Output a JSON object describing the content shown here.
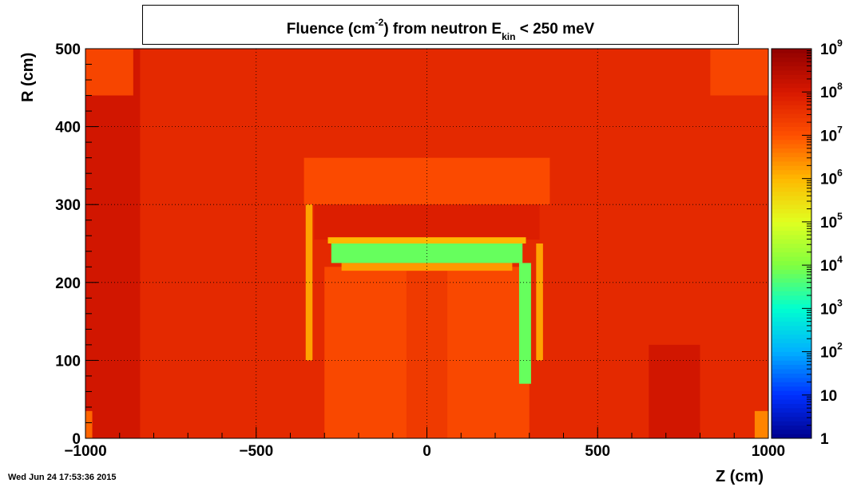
{
  "chart_data": {
    "type": "heatmap",
    "title": {
      "prefix": "Fluence (cm",
      "exponent": "-2",
      "middle": ") from   neutron  E",
      "subscript": "kin",
      "suffix": " < 250 meV"
    },
    "xlabel": "Z (cm)",
    "ylabel": "R (cm)",
    "xlim": [
      -1000,
      1000
    ],
    "ylim": [
      0,
      500
    ],
    "x_ticks": [
      {
        "value": -1000,
        "label": "−1000"
      },
      {
        "value": -500,
        "label": "−500"
      },
      {
        "value": 0,
        "label": "0"
      },
      {
        "value": 500,
        "label": "500"
      },
      {
        "value": 1000,
        "label": "1000"
      }
    ],
    "y_ticks": [
      {
        "value": 0,
        "label": "0"
      },
      {
        "value": 100,
        "label": "100"
      },
      {
        "value": 200,
        "label": "200"
      },
      {
        "value": 300,
        "label": "300"
      },
      {
        "value": 400,
        "label": "400"
      },
      {
        "value": 500,
        "label": "500"
      }
    ],
    "grid": true,
    "color_scale": "log",
    "colorbar_range": [
      1,
      1000000000
    ],
    "colorbar_ticks": [
      {
        "value": 1,
        "base": "1",
        "exp": ""
      },
      {
        "value": 10,
        "base": "10",
        "exp": ""
      },
      {
        "value": 100,
        "base": "10",
        "exp": "2"
      },
      {
        "value": 1000,
        "base": "10",
        "exp": "3"
      },
      {
        "value": 10000,
        "base": "10",
        "exp": "4"
      },
      {
        "value": 100000,
        "base": "10",
        "exp": "5"
      },
      {
        "value": 1000000,
        "base": "10",
        "exp": "6"
      },
      {
        "value": 10000000,
        "base": "10",
        "exp": "7"
      },
      {
        "value": 100000000,
        "base": "10",
        "exp": "8"
      },
      {
        "value": 1000000000,
        "base": "10",
        "exp": "9"
      }
    ],
    "colorbar_colors": [
      "#00008c",
      "#0030ff",
      "#00b0ff",
      "#00ffd0",
      "#80ff40",
      "#e0ff20",
      "#ffb800",
      "#ff5000",
      "#d81800",
      "#900000"
    ],
    "background_log_value": 7.7,
    "regions": [
      {
        "name": "left-dark-band",
        "z": [
          -1000,
          -840
        ],
        "r": [
          0,
          500
        ],
        "log_value": 8.1
      },
      {
        "name": "left-corner-top",
        "z": [
          -1000,
          -860
        ],
        "r": [
          440,
          500
        ],
        "log_value": 7.2
      },
      {
        "name": "left-corner-bottom",
        "z": [
          -1000,
          -980
        ],
        "r": [
          0,
          35
        ],
        "log_value": 6.8
      },
      {
        "name": "right-corner-top",
        "z": [
          830,
          1000
        ],
        "r": [
          440,
          500
        ],
        "log_value": 7.2
      },
      {
        "name": "right-corner-bottom",
        "z": [
          960,
          1000
        ],
        "r": [
          0,
          35
        ],
        "log_value": 6.5
      },
      {
        "name": "right-dark-spot",
        "z": [
          650,
          800
        ],
        "r": [
          0,
          120
        ],
        "log_value": 8.1
      },
      {
        "name": "upper-detector-shell",
        "z": [
          -360,
          360
        ],
        "r": [
          300,
          360
        ],
        "log_value": 7.1
      },
      {
        "name": "inner-red-cavity",
        "z": [
          -330,
          330
        ],
        "r": [
          255,
          300
        ],
        "log_value": 7.9
      },
      {
        "name": "inner-volume",
        "z": [
          -300,
          300
        ],
        "r": [
          0,
          220
        ],
        "log_value": 7.15
      },
      {
        "name": "central-strip",
        "z": [
          -60,
          60
        ],
        "r": [
          0,
          220
        ],
        "log_value": 7.4
      },
      {
        "name": "left-yellow-column",
        "z": [
          -355,
          -335
        ],
        "r": [
          100,
          300
        ],
        "log_value": 6.2
      },
      {
        "name": "right-yellow-column",
        "z": [
          320,
          340
        ],
        "r": [
          100,
          250
        ],
        "log_value": 6.2
      },
      {
        "name": "gap-band",
        "z": [
          -290,
          290
        ],
        "r": [
          250,
          258
        ],
        "log_value": 6.0
      },
      {
        "name": "under-lens-band",
        "z": [
          -250,
          250
        ],
        "r": [
          215,
          225
        ],
        "log_value": 6.3
      },
      {
        "name": "lens-cavity",
        "z": [
          -280,
          280
        ],
        "r": [
          225,
          250
        ],
        "log_value": 3.8
      },
      {
        "name": "right-cavity",
        "z": [
          270,
          305
        ],
        "r": [
          70,
          225
        ],
        "log_value": 3.8
      }
    ]
  },
  "timestamp": "Wed Jun 24 17:53:36 2015"
}
